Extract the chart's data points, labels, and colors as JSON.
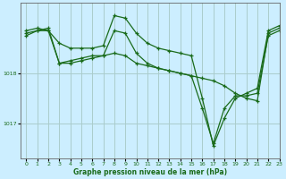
{
  "title": "Graphe pression niveau de la mer (hPa)",
  "bg_color": "#cceeff",
  "grid_color": "#aacccc",
  "line_color": "#1a6b1a",
  "xlim": [
    -0.5,
    23
  ],
  "ylim": [
    1016.3,
    1019.4
  ],
  "yticks": [
    1017,
    1018
  ],
  "xticks": [
    0,
    1,
    2,
    3,
    4,
    5,
    6,
    7,
    8,
    9,
    10,
    11,
    12,
    13,
    14,
    15,
    16,
    17,
    18,
    19,
    20,
    21,
    22,
    23
  ],
  "series1": [
    1018.85,
    1018.9,
    1018.85,
    1018.6,
    1018.5,
    1018.5,
    1018.5,
    1018.55,
    1019.15,
    1019.1,
    1018.8,
    1018.6,
    1018.5,
    1018.45,
    1018.4,
    1018.35,
    1017.5,
    1016.55,
    1017.1,
    1017.5,
    1017.6,
    1017.7,
    1018.85,
    1018.95
  ],
  "series2": [
    1018.8,
    1018.85,
    1018.9,
    1018.2,
    1018.25,
    1018.3,
    1018.35,
    1018.35,
    1018.85,
    1018.8,
    1018.4,
    1018.2,
    1018.1,
    1018.05,
    1018.0,
    1017.95,
    1017.9,
    1017.85,
    1017.75,
    1017.6,
    1017.5,
    1017.45,
    1018.8,
    1018.9
  ],
  "series3": [
    1018.75,
    1018.85,
    1018.85,
    1018.2,
    1018.2,
    1018.25,
    1018.3,
    1018.35,
    1018.4,
    1018.35,
    1018.2,
    1018.15,
    1018.1,
    1018.05,
    1018.0,
    1017.95,
    1017.3,
    1016.6,
    1017.3,
    1017.55,
    1017.55,
    1017.6,
    1018.75,
    1018.85
  ]
}
